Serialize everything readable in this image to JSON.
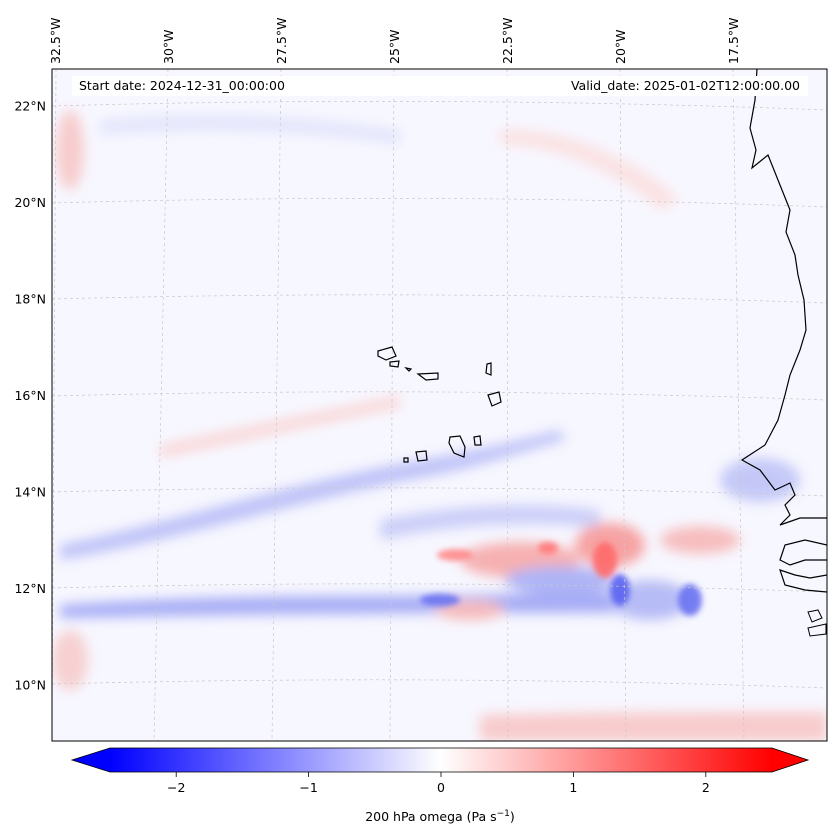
{
  "map": {
    "header": {
      "start_date": "Start date: 2024-12-31_00:00:00",
      "valid_date": "Valid_date: 2025-01-02T12:00:00.00"
    },
    "lon_labels": [
      "32.5°W",
      "30°W",
      "27.5°W",
      "25°W",
      "22.5°W",
      "20°W",
      "17.5°W"
    ],
    "lon_values": [
      -32.5,
      -30,
      -27.5,
      -25,
      -22.5,
      -20,
      -17.5
    ],
    "lat_labels": [
      "22°N",
      "20°N",
      "18°N",
      "16°N",
      "14°N",
      "12°N",
      "10°N"
    ],
    "lat_values": [
      22,
      20,
      18,
      16,
      14,
      12,
      10
    ],
    "colorbar": {
      "label_text": "200 hPa omega (Pa s",
      "label_exp": "−1",
      "label_close": ")",
      "tick_labels": [
        "−2",
        "−1",
        "0",
        "1",
        "2"
      ],
      "tick_values": [
        -2,
        -1,
        0,
        1,
        2
      ],
      "vmin": -2.5,
      "vmax": 2.5,
      "colors": {
        "negative": "#0000ff",
        "zero": "#ffffff",
        "positive": "#ff0000"
      }
    },
    "colors": {
      "land_edge": "#000000",
      "grid": "#c8c8c8",
      "sea_bg": "#f7f7ff"
    }
  }
}
